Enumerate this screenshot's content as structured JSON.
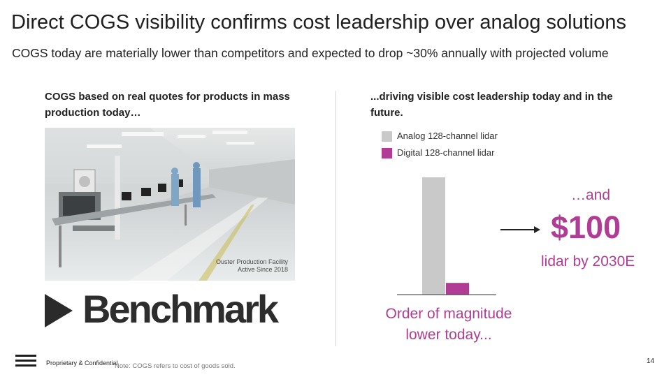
{
  "slide": {
    "title": "Direct COGS visibility confirms cost leadership over analog solutions",
    "subtitle": "COGS today are materially lower than competitors and expected to drop ~30% annually with projected volume"
  },
  "left": {
    "heading": "COGS based on real quotes for products in mass production today…",
    "photo_caption_line1": "Ouster Production Facility",
    "photo_caption_line2": "Active Since 2018",
    "logo_text": "Benchmark"
  },
  "right": {
    "heading": "...driving visible cost leadership today and in the future.",
    "legend": [
      {
        "label": "Analog 128-channel lidar",
        "color": "#c9c9c9"
      },
      {
        "label": "Digital 128-channel lidar",
        "color": "#b03c95"
      }
    ],
    "and_text": "…and",
    "price_text": "$100",
    "lidar_text": "lidar by 2030E",
    "magnitude_line1": "Order of magnitude",
    "magnitude_line2": "lower today..."
  },
  "chart_data": {
    "type": "bar",
    "categories": [
      "Analog 128-channel lidar",
      "Digital 128-channel lidar"
    ],
    "values": [
      10,
      1
    ],
    "colors": [
      "#c9c9c9",
      "#b03c95"
    ],
    "title": "",
    "xlabel": "",
    "ylabel": "",
    "ylim": [
      0,
      10
    ],
    "grid": false,
    "legend": "top-left"
  },
  "footer": {
    "confidential": "Proprietary & Confidential",
    "note": "Note: COGS refers to cost of goods sold.",
    "page_number": "14"
  },
  "icons": [
    "ouster-logo-icon",
    "benchmark-logo-icon",
    "arrow-right-icon"
  ]
}
